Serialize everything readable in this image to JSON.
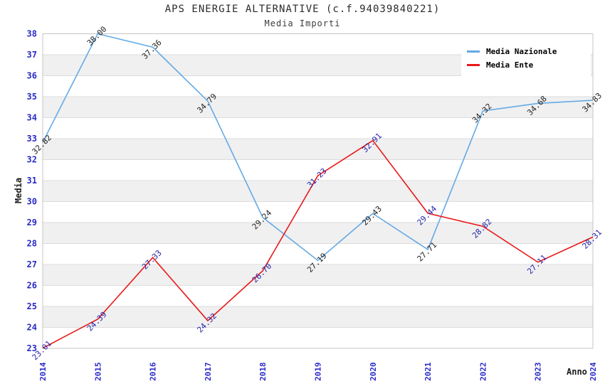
{
  "header": {
    "title": "APS ENERGIE ALTERNATIVE (c.f.94039840221)",
    "subtitle": "Media Importi"
  },
  "chart_data": {
    "type": "line",
    "title": "APS ENERGIE ALTERNATIVE (c.f.94039840221)",
    "subtitle": "Media Importi",
    "xlabel": "Anno",
    "ylabel": "Media",
    "x": [
      2014,
      2015,
      2016,
      2017,
      2018,
      2019,
      2020,
      2021,
      2022,
      2023,
      2024
    ],
    "ylim": [
      23,
      38
    ],
    "y_tick_step": 1,
    "grid": "horizontal-bands",
    "legend_position": "top-right",
    "colors": {
      "tick_label": "#2a2ac8",
      "band": "#f0f0f0",
      "gridline": "#dcdcdc",
      "plot_border": "#c4c4c4"
    },
    "series": [
      {
        "name": "Media Nazionale",
        "color": "#64a9e4",
        "label_color": "#222222",
        "values": [
          32.82,
          38.0,
          37.36,
          34.79,
          29.24,
          27.19,
          29.43,
          27.71,
          34.32,
          34.68,
          34.83
        ]
      },
      {
        "name": "Media Ente",
        "color": "#e81818",
        "label_color": "#2525a8",
        "values": [
          23.01,
          24.39,
          27.33,
          24.32,
          26.7,
          31.23,
          32.91,
          29.44,
          28.82,
          27.11,
          28.31
        ]
      }
    ]
  }
}
